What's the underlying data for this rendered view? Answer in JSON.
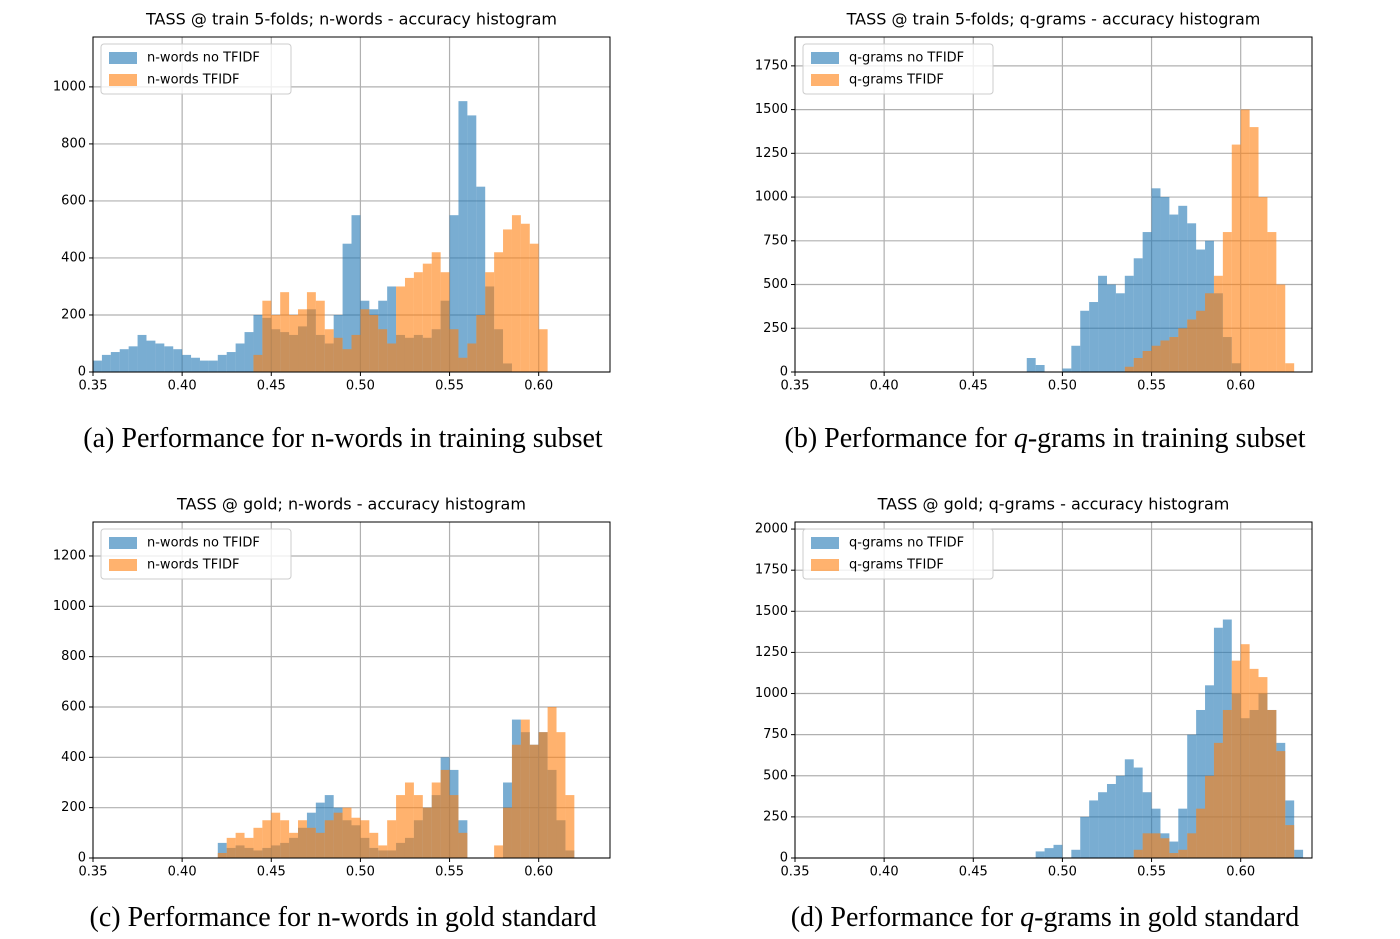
{
  "chart_data": [
    {
      "type": "histogram",
      "title": "TASS @ train 5-folds;  n-words - accuracy histogram",
      "caption": [
        "(a) Performance for n-words in training subset"
      ],
      "bins": [
        0.35,
        0.355,
        0.36,
        0.365,
        0.37,
        0.375,
        0.38,
        0.385,
        0.39,
        0.395,
        0.4,
        0.405,
        0.41,
        0.415,
        0.42,
        0.425,
        0.43,
        0.435,
        0.44,
        0.445,
        0.45,
        0.455,
        0.46,
        0.465,
        0.47,
        0.475,
        0.48,
        0.485,
        0.49,
        0.495,
        0.5,
        0.505,
        0.51,
        0.515,
        0.52,
        0.525,
        0.53,
        0.535,
        0.54,
        0.545,
        0.55,
        0.555,
        0.56,
        0.565,
        0.57,
        0.575,
        0.58,
        0.585,
        0.59,
        0.595,
        0.6,
        0.605,
        0.61,
        0.615,
        0.62,
        0.625,
        0.63,
        0.635,
        0.64
      ],
      "series": [
        {
          "name": "n-words no TFIDF",
          "color": "#1f77b4",
          "values": [
            40,
            60,
            70,
            80,
            90,
            130,
            110,
            100,
            90,
            80,
            60,
            50,
            40,
            40,
            60,
            70,
            100,
            140,
            200,
            190,
            150,
            140,
            130,
            160,
            220,
            130,
            100,
            200,
            450,
            550,
            250,
            220,
            250,
            300,
            130,
            120,
            130,
            120,
            150,
            250,
            550,
            950,
            900,
            650,
            300,
            150,
            30,
            0,
            0,
            0,
            0,
            0,
            0,
            0,
            0,
            0,
            0,
            0
          ]
        },
        {
          "name": "n-words TFIDF",
          "color": "#ff7f0e",
          "values": [
            0,
            0,
            0,
            0,
            0,
            0,
            0,
            0,
            0,
            0,
            0,
            0,
            0,
            0,
            0,
            0,
            0,
            0,
            60,
            250,
            200,
            280,
            200,
            220,
            280,
            250,
            150,
            120,
            80,
            130,
            220,
            200,
            150,
            100,
            300,
            330,
            350,
            380,
            420,
            350,
            150,
            50,
            100,
            200,
            350,
            420,
            500,
            550,
            520,
            450,
            150,
            0,
            0,
            0,
            0,
            0,
            0,
            0
          ]
        }
      ],
      "alpha": 0.6,
      "xlim": [
        0.35,
        0.64
      ],
      "ylim": [
        0,
        1175
      ],
      "xticks": [
        0.35,
        {
          "value": 0.4,
          "label": "0.40"
        },
        0.45,
        {
          "value": 0.5,
          "label": "0.50"
        },
        0.55,
        {
          "value": 0.6,
          "label": "0.60"
        }
      ],
      "yticks": [
        0,
        200,
        400,
        600,
        800,
        1000
      ],
      "grid": true,
      "legend": "upper left"
    },
    {
      "type": "histogram",
      "title": "TASS @ train 5-folds;  q-grams - accuracy histogram",
      "caption": [
        "(b) Performance for ",
        "q",
        "-grams in training subset"
      ],
      "bins": [
        0.35,
        0.355,
        0.36,
        0.365,
        0.37,
        0.375,
        0.38,
        0.385,
        0.39,
        0.395,
        0.4,
        0.405,
        0.41,
        0.415,
        0.42,
        0.425,
        0.43,
        0.435,
        0.44,
        0.445,
        0.45,
        0.455,
        0.46,
        0.465,
        0.47,
        0.475,
        0.48,
        0.485,
        0.49,
        0.495,
        0.5,
        0.505,
        0.51,
        0.515,
        0.52,
        0.525,
        0.53,
        0.535,
        0.54,
        0.545,
        0.55,
        0.555,
        0.56,
        0.565,
        0.57,
        0.575,
        0.58,
        0.585,
        0.59,
        0.595,
        0.6,
        0.605,
        0.61,
        0.615,
        0.62,
        0.625,
        0.63,
        0.635,
        0.64
      ],
      "series": [
        {
          "name": "q-grams no TFIDF",
          "color": "#1f77b4",
          "values": [
            0,
            0,
            0,
            0,
            0,
            0,
            0,
            0,
            0,
            0,
            0,
            0,
            0,
            0,
            0,
            0,
            0,
            0,
            0,
            0,
            0,
            0,
            0,
            0,
            0,
            0,
            80,
            40,
            0,
            0,
            20,
            150,
            350,
            400,
            550,
            500,
            450,
            550,
            650,
            800,
            1050,
            1000,
            900,
            950,
            850,
            700,
            750,
            450,
            200,
            50,
            0,
            0,
            0,
            0,
            0,
            0,
            0,
            0
          ]
        },
        {
          "name": "q-grams TFIDF",
          "color": "#ff7f0e",
          "values": [
            0,
            0,
            0,
            0,
            0,
            0,
            0,
            0,
            0,
            0,
            0,
            0,
            0,
            0,
            0,
            0,
            0,
            0,
            0,
            0,
            0,
            0,
            0,
            0,
            0,
            0,
            0,
            0,
            0,
            0,
            0,
            0,
            0,
            0,
            0,
            0,
            0,
            30,
            80,
            120,
            150,
            180,
            200,
            250,
            300,
            350,
            450,
            550,
            800,
            1300,
            1500,
            1400,
            1000,
            800,
            500,
            50,
            0,
            0
          ]
        }
      ],
      "alpha": 0.6,
      "xlim": [
        0.35,
        0.64
      ],
      "ylim": [
        0,
        1915
      ],
      "xticks": [
        0.35,
        {
          "value": 0.4,
          "label": "0.40"
        },
        0.45,
        {
          "value": 0.5,
          "label": "0.50"
        },
        0.55,
        {
          "value": 0.6,
          "label": "0.60"
        }
      ],
      "yticks": [
        0,
        250,
        500,
        750,
        1000,
        1250,
        1500,
        1750
      ],
      "grid": true,
      "legend": "upper left"
    },
    {
      "type": "histogram",
      "title": "TASS @ gold;  n-words - accuracy histogram",
      "caption": [
        "(c) Performance for n-words in gold standard"
      ],
      "bins": [
        0.35,
        0.355,
        0.36,
        0.365,
        0.37,
        0.375,
        0.38,
        0.385,
        0.39,
        0.395,
        0.4,
        0.405,
        0.41,
        0.415,
        0.42,
        0.425,
        0.43,
        0.435,
        0.44,
        0.445,
        0.45,
        0.455,
        0.46,
        0.465,
        0.47,
        0.475,
        0.48,
        0.485,
        0.49,
        0.495,
        0.5,
        0.505,
        0.51,
        0.515,
        0.52,
        0.525,
        0.53,
        0.535,
        0.54,
        0.545,
        0.55,
        0.555,
        0.56,
        0.565,
        0.57,
        0.575,
        0.58,
        0.585,
        0.59,
        0.595,
        0.6,
        0.605,
        0.61,
        0.615,
        0.62,
        0.625,
        0.63,
        0.635,
        0.64
      ],
      "series": [
        {
          "name": "n-words no TFIDF",
          "color": "#1f77b4",
          "values": [
            0,
            0,
            0,
            0,
            0,
            0,
            0,
            0,
            0,
            0,
            0,
            0,
            0,
            0,
            60,
            40,
            50,
            40,
            30,
            40,
            50,
            60,
            80,
            120,
            180,
            220,
            250,
            200,
            150,
            130,
            80,
            40,
            30,
            30,
            60,
            80,
            150,
            200,
            250,
            400,
            350,
            150,
            0,
            0,
            0,
            0,
            300,
            550,
            500,
            450,
            500,
            350,
            150,
            30,
            0,
            0,
            0,
            0
          ]
        },
        {
          "name": "n-words TFIDF",
          "color": "#ff7f0e",
          "values": [
            0,
            0,
            0,
            0,
            0,
            0,
            0,
            0,
            0,
            0,
            0,
            0,
            0,
            0,
            20,
            80,
            100,
            80,
            120,
            150,
            180,
            150,
            100,
            150,
            120,
            100,
            150,
            180,
            200,
            160,
            150,
            100,
            50,
            150,
            250,
            300,
            250,
            200,
            300,
            350,
            250,
            100,
            0,
            0,
            0,
            50,
            200,
            450,
            550,
            450,
            500,
            600,
            500,
            250,
            0,
            0,
            0,
            0
          ]
        }
      ],
      "alpha": 0.6,
      "xlim": [
        0.35,
        0.64
      ],
      "ylim": [
        0,
        1335
      ],
      "xticks": [
        0.35,
        {
          "value": 0.4,
          "label": "0.40"
        },
        0.45,
        {
          "value": 0.5,
          "label": "0.50"
        },
        0.55,
        {
          "value": 0.6,
          "label": "0.60"
        }
      ],
      "yticks": [
        0,
        200,
        400,
        600,
        800,
        1000,
        1200
      ],
      "grid": true,
      "legend": "upper left"
    },
    {
      "type": "histogram",
      "title": "TASS @ gold;  q-grams - accuracy histogram",
      "caption": [
        "(d) Performance for ",
        "q",
        "-grams in gold standard"
      ],
      "bins": [
        0.35,
        0.355,
        0.36,
        0.365,
        0.37,
        0.375,
        0.38,
        0.385,
        0.39,
        0.395,
        0.4,
        0.405,
        0.41,
        0.415,
        0.42,
        0.425,
        0.43,
        0.435,
        0.44,
        0.445,
        0.45,
        0.455,
        0.46,
        0.465,
        0.47,
        0.475,
        0.48,
        0.485,
        0.49,
        0.495,
        0.5,
        0.505,
        0.51,
        0.515,
        0.52,
        0.525,
        0.53,
        0.535,
        0.54,
        0.545,
        0.55,
        0.555,
        0.56,
        0.565,
        0.57,
        0.575,
        0.58,
        0.585,
        0.59,
        0.595,
        0.6,
        0.605,
        0.61,
        0.615,
        0.62,
        0.625,
        0.63,
        0.635,
        0.64
      ],
      "series": [
        {
          "name": "q-grams no TFIDF",
          "color": "#1f77b4",
          "values": [
            0,
            0,
            0,
            0,
            0,
            0,
            0,
            0,
            0,
            0,
            0,
            0,
            0,
            0,
            0,
            0,
            0,
            0,
            0,
            0,
            0,
            0,
            0,
            0,
            0,
            0,
            0,
            40,
            60,
            80,
            0,
            50,
            250,
            350,
            400,
            450,
            500,
            600,
            550,
            400,
            300,
            150,
            100,
            300,
            750,
            900,
            1050,
            1400,
            1450,
            1000,
            850,
            900,
            1000,
            900,
            700,
            350,
            50,
            0
          ]
        },
        {
          "name": "q-grams TFIDF",
          "color": "#ff7f0e",
          "values": [
            0,
            0,
            0,
            0,
            0,
            0,
            0,
            0,
            0,
            0,
            0,
            0,
            0,
            0,
            0,
            0,
            0,
            0,
            0,
            0,
            0,
            0,
            0,
            0,
            0,
            0,
            0,
            0,
            0,
            0,
            0,
            0,
            0,
            0,
            0,
            0,
            0,
            0,
            50,
            150,
            150,
            120,
            30,
            50,
            150,
            300,
            500,
            700,
            900,
            1200,
            1300,
            1150,
            1100,
            900,
            650,
            200,
            0,
            0
          ]
        }
      ],
      "alpha": 0.6,
      "xlim": [
        0.35,
        0.64
      ],
      "ylim": [
        0,
        2043
      ],
      "xticks": [
        0.35,
        {
          "value": 0.4,
          "label": "0.40"
        },
        0.45,
        {
          "value": 0.5,
          "label": "0.50"
        },
        0.55,
        {
          "value": 0.6,
          "label": "0.60"
        }
      ],
      "yticks": [
        0,
        250,
        500,
        750,
        1000,
        1250,
        1500,
        1750,
        2000
      ],
      "grid": true,
      "legend": "upper left"
    }
  ]
}
